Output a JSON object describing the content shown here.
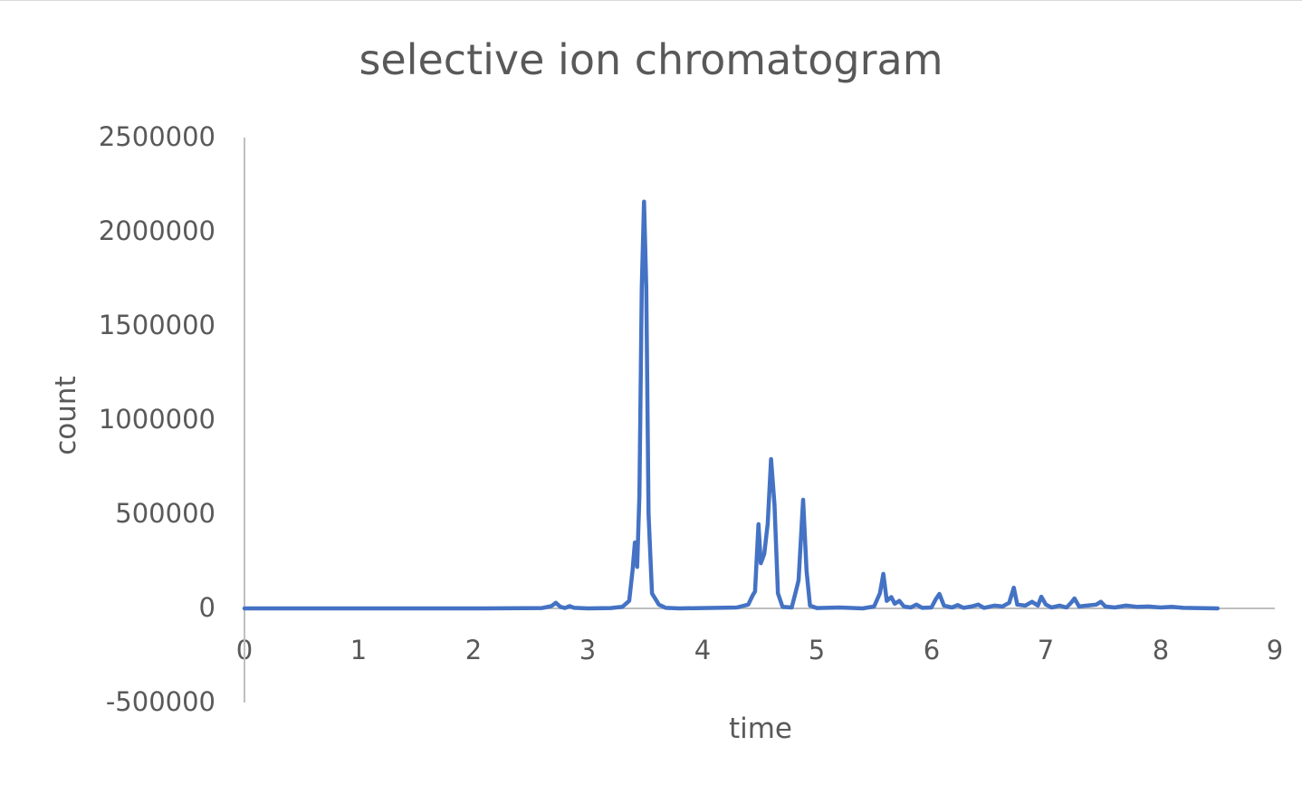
{
  "chart": {
    "title": "selective ion chromatogram",
    "xlabel": "time",
    "ylabel": "count",
    "line_color": "#4472c4",
    "axis_color": "#bfbfbf",
    "y_ticks": [
      "2500000",
      "2000000",
      "1500000",
      "1000000",
      "500000",
      "0",
      "-500000"
    ],
    "x_ticks": [
      "0",
      "1",
      "2",
      "3",
      "4",
      "5",
      "6",
      "7",
      "8",
      "9"
    ]
  },
  "chart_data": {
    "type": "line",
    "title": "selective ion chromatogram",
    "xlabel": "time",
    "ylabel": "count",
    "xlim": [
      0,
      9
    ],
    "ylim": [
      -500000,
      2500000
    ],
    "grid": false,
    "legend": "none",
    "x_ticks": [
      0,
      1,
      2,
      3,
      4,
      5,
      6,
      7,
      8,
      9
    ],
    "y_ticks": [
      -500000,
      0,
      500000,
      1000000,
      1500000,
      2000000,
      2500000
    ],
    "series": [
      {
        "name": "count",
        "color": "#4472c4",
        "points": [
          [
            0.0,
            0
          ],
          [
            2.1,
            0
          ],
          [
            2.6,
            2000
          ],
          [
            2.68,
            12000
          ],
          [
            2.72,
            30000
          ],
          [
            2.76,
            8000
          ],
          [
            2.8,
            2000
          ],
          [
            2.84,
            12000
          ],
          [
            2.88,
            3000
          ],
          [
            3.0,
            0
          ],
          [
            3.2,
            2000
          ],
          [
            3.3,
            8000
          ],
          [
            3.36,
            40000
          ],
          [
            3.39,
            200000
          ],
          [
            3.41,
            350000
          ],
          [
            3.43,
            220000
          ],
          [
            3.45,
            600000
          ],
          [
            3.47,
            1700000
          ],
          [
            3.49,
            2160000
          ],
          [
            3.51,
            1700000
          ],
          [
            3.53,
            500000
          ],
          [
            3.56,
            80000
          ],
          [
            3.62,
            20000
          ],
          [
            3.68,
            3000
          ],
          [
            3.8,
            0
          ],
          [
            4.3,
            5000
          ],
          [
            4.4,
            20000
          ],
          [
            4.44,
            70000
          ],
          [
            4.46,
            90000
          ],
          [
            4.49,
            447000
          ],
          [
            4.51,
            240000
          ],
          [
            4.54,
            290000
          ],
          [
            4.57,
            450000
          ],
          [
            4.6,
            793000
          ],
          [
            4.63,
            550000
          ],
          [
            4.66,
            80000
          ],
          [
            4.7,
            8000
          ],
          [
            4.78,
            5000
          ],
          [
            4.82,
            100000
          ],
          [
            4.84,
            150000
          ],
          [
            4.88,
            577000
          ],
          [
            4.91,
            200000
          ],
          [
            4.94,
            15000
          ],
          [
            5.0,
            2000
          ],
          [
            5.2,
            5000
          ],
          [
            5.4,
            0
          ],
          [
            5.5,
            10000
          ],
          [
            5.55,
            80000
          ],
          [
            5.58,
            183000
          ],
          [
            5.61,
            40000
          ],
          [
            5.65,
            60000
          ],
          [
            5.68,
            25000
          ],
          [
            5.72,
            40000
          ],
          [
            5.76,
            10000
          ],
          [
            5.82,
            5000
          ],
          [
            5.87,
            20000
          ],
          [
            5.92,
            3000
          ],
          [
            6.0,
            5000
          ],
          [
            6.04,
            50000
          ],
          [
            6.07,
            77000
          ],
          [
            6.11,
            15000
          ],
          [
            6.18,
            5000
          ],
          [
            6.23,
            18000
          ],
          [
            6.28,
            3000
          ],
          [
            6.35,
            10000
          ],
          [
            6.41,
            20000
          ],
          [
            6.46,
            3000
          ],
          [
            6.55,
            15000
          ],
          [
            6.62,
            10000
          ],
          [
            6.68,
            30000
          ],
          [
            6.72,
            110000
          ],
          [
            6.75,
            20000
          ],
          [
            6.82,
            15000
          ],
          [
            6.88,
            35000
          ],
          [
            6.93,
            15000
          ],
          [
            6.96,
            62000
          ],
          [
            7.0,
            20000
          ],
          [
            7.05,
            5000
          ],
          [
            7.12,
            15000
          ],
          [
            7.18,
            5000
          ],
          [
            7.22,
            30000
          ],
          [
            7.25,
            53000
          ],
          [
            7.29,
            10000
          ],
          [
            7.36,
            15000
          ],
          [
            7.44,
            20000
          ],
          [
            7.48,
            35000
          ],
          [
            7.52,
            10000
          ],
          [
            7.6,
            5000
          ],
          [
            7.7,
            15000
          ],
          [
            7.8,
            8000
          ],
          [
            7.9,
            10000
          ],
          [
            8.0,
            5000
          ],
          [
            8.1,
            8000
          ],
          [
            8.2,
            3000
          ],
          [
            8.5,
            0
          ]
        ]
      }
    ]
  }
}
